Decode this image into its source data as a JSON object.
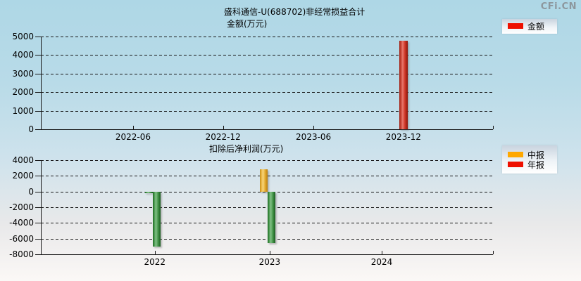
{
  "watermark": "CFi.CN",
  "legend_colors": {
    "amount": "#ee1000",
    "interim": "#ffa800",
    "annual": "#ee1000"
  },
  "chart_data": [
    {
      "type": "bar",
      "title": "盛科通信-U(688702)非经常损益合计",
      "subtitle": "金额(万元)",
      "x_ticks": [
        "2022-06",
        "2022-12",
        "2023-06",
        "2023-12"
      ],
      "y_ticks": [
        "5000",
        "4000",
        "3000",
        "2000",
        "1000",
        "0"
      ],
      "ylim": [
        0,
        5000
      ],
      "grid": "horizontal-dashed",
      "legend_position": "top-right",
      "series": [
        {
          "name": "金额",
          "legend_color": "#ee1000",
          "points": [
            {
              "x": "2023-12",
              "value": 4760
            }
          ]
        }
      ]
    },
    {
      "type": "bar",
      "title": "扣除后净利润(万元)",
      "x_ticks": [
        "2022",
        "2023",
        "2024"
      ],
      "y_ticks": [
        "4000",
        "2000",
        "0",
        "-2000",
        "-4000",
        "-6000",
        "-8000"
      ],
      "ylim": [
        -8000,
        4000
      ],
      "grid": "horizontal-dashed",
      "legend_position": "top-right",
      "note": "negative bars drawn in green",
      "series": [
        {
          "name": "中报",
          "legend_color": "#ffa800",
          "points": [
            {
              "x": "2022",
              "value": -150
            },
            {
              "x": "2023",
              "value": 2810
            }
          ]
        },
        {
          "name": "年报",
          "legend_color": "#ee1000",
          "points": [
            {
              "x": "2022",
              "value": -6980
            },
            {
              "x": "2023",
              "value": -6580
            }
          ]
        }
      ]
    }
  ]
}
